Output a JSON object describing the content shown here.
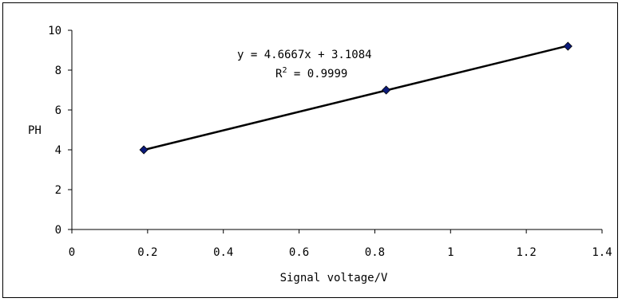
{
  "chart_data": {
    "type": "scatter",
    "title": "",
    "xlabel": "Signal voltage/V",
    "ylabel": "PH",
    "xlim": [
      0,
      1.4
    ],
    "ylim": [
      0,
      10
    ],
    "xticks": [
      "0",
      "0.2",
      "0.4",
      "0.6",
      "0.8",
      "1",
      "1.2",
      "1.4"
    ],
    "yticks": [
      "0",
      "2",
      "4",
      "6",
      "8",
      "10"
    ],
    "grid": false,
    "points": [
      {
        "x": 0.19,
        "y": 4.0
      },
      {
        "x": 0.83,
        "y": 7.0
      },
      {
        "x": 1.31,
        "y": 9.2
      }
    ],
    "trendline": {
      "slope": 4.6667,
      "intercept": 3.1084
    },
    "annotations": {
      "equation": "y = 4.6667x + 3.1084",
      "r2_prefix": "R",
      "r2_sup": "2",
      "r2_suffix": " = 0.9999"
    },
    "colors": {
      "marker": "#0b1a7a",
      "line": "#000000"
    }
  }
}
